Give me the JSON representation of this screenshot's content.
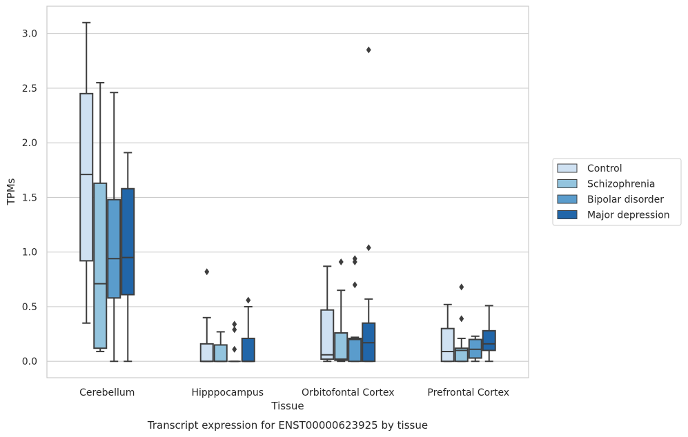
{
  "chart_data": {
    "type": "box",
    "title": "",
    "caption": "Transcript expression for ENST00000623925 by tissue",
    "xlabel": "Tissue",
    "ylabel": "TPMs",
    "ylim": [
      -0.15,
      3.25
    ],
    "yticks": [
      "0.0",
      "0.5",
      "1.0",
      "1.5",
      "2.0",
      "2.5",
      "3.0"
    ],
    "grid": "horizontal",
    "legend_position": "right",
    "categories": [
      "Cerebellum",
      "Hipppocampus",
      "Orbitofontal Cortex",
      "Prefrontal Cortex"
    ],
    "series": [
      {
        "name": "Control",
        "color": "#cfe1f2",
        "boxes": [
          {
            "whislo": 0.35,
            "q1": 0.92,
            "med": 1.71,
            "q3": 2.45,
            "whishi": 3.1,
            "fliers": []
          },
          {
            "whislo": 0.0,
            "q1": 0.0,
            "med": 0.0,
            "q3": 0.16,
            "whishi": 0.4,
            "fliers": [
              0.82
            ]
          },
          {
            "whislo": 0.0,
            "q1": 0.02,
            "med": 0.06,
            "q3": 0.47,
            "whishi": 0.87,
            "fliers": []
          },
          {
            "whislo": 0.0,
            "q1": 0.0,
            "med": 0.09,
            "q3": 0.3,
            "whishi": 0.52,
            "fliers": []
          }
        ]
      },
      {
        "name": "Schizophrenia",
        "color": "#93c4de",
        "boxes": [
          {
            "whislo": 0.09,
            "q1": 0.12,
            "med": 0.71,
            "q3": 1.63,
            "whishi": 2.55,
            "fliers": []
          },
          {
            "whislo": 0.0,
            "q1": 0.0,
            "med": 0.0,
            "q3": 0.15,
            "whishi": 0.27,
            "fliers": []
          },
          {
            "whislo": 0.0,
            "q1": 0.01,
            "med": 0.02,
            "q3": 0.26,
            "whishi": 0.65,
            "fliers": [
              0.91
            ]
          },
          {
            "whislo": 0.0,
            "q1": 0.0,
            "med": 0.1,
            "q3": 0.12,
            "whishi": 0.21,
            "fliers": [
              0.39,
              0.68
            ]
          }
        ]
      },
      {
        "name": "Bipolar disorder",
        "color": "#5a9ccc",
        "boxes": [
          {
            "whislo": 0.0,
            "q1": 0.58,
            "med": 0.94,
            "q3": 1.48,
            "whishi": 2.46,
            "fliers": []
          },
          {
            "whislo": 0.0,
            "q1": 0.0,
            "med": 0.0,
            "q3": 0.0,
            "whishi": 0.0,
            "fliers": [
              0.11,
              0.29,
              0.34
            ]
          },
          {
            "whislo": 0.0,
            "q1": 0.0,
            "med": 0.2,
            "q3": 0.21,
            "whishi": 0.22,
            "fliers": [
              0.7,
              0.91,
              0.94
            ]
          },
          {
            "whislo": 0.0,
            "q1": 0.03,
            "med": 0.11,
            "q3": 0.2,
            "whishi": 0.23,
            "fliers": []
          }
        ]
      },
      {
        "name": "Major depression",
        "color": "#2166a9",
        "boxes": [
          {
            "whislo": 0.0,
            "q1": 0.61,
            "med": 0.95,
            "q3": 1.58,
            "whishi": 1.91,
            "fliers": []
          },
          {
            "whislo": 0.0,
            "q1": 0.0,
            "med": 0.0,
            "q3": 0.21,
            "whishi": 0.5,
            "fliers": [
              0.56
            ]
          },
          {
            "whislo": 0.0,
            "q1": 0.0,
            "med": 0.17,
            "q3": 0.35,
            "whishi": 0.57,
            "fliers": [
              1.04,
              2.85
            ]
          },
          {
            "whislo": 0.0,
            "q1": 0.1,
            "med": 0.16,
            "q3": 0.28,
            "whishi": 0.51,
            "fliers": []
          }
        ]
      }
    ]
  }
}
